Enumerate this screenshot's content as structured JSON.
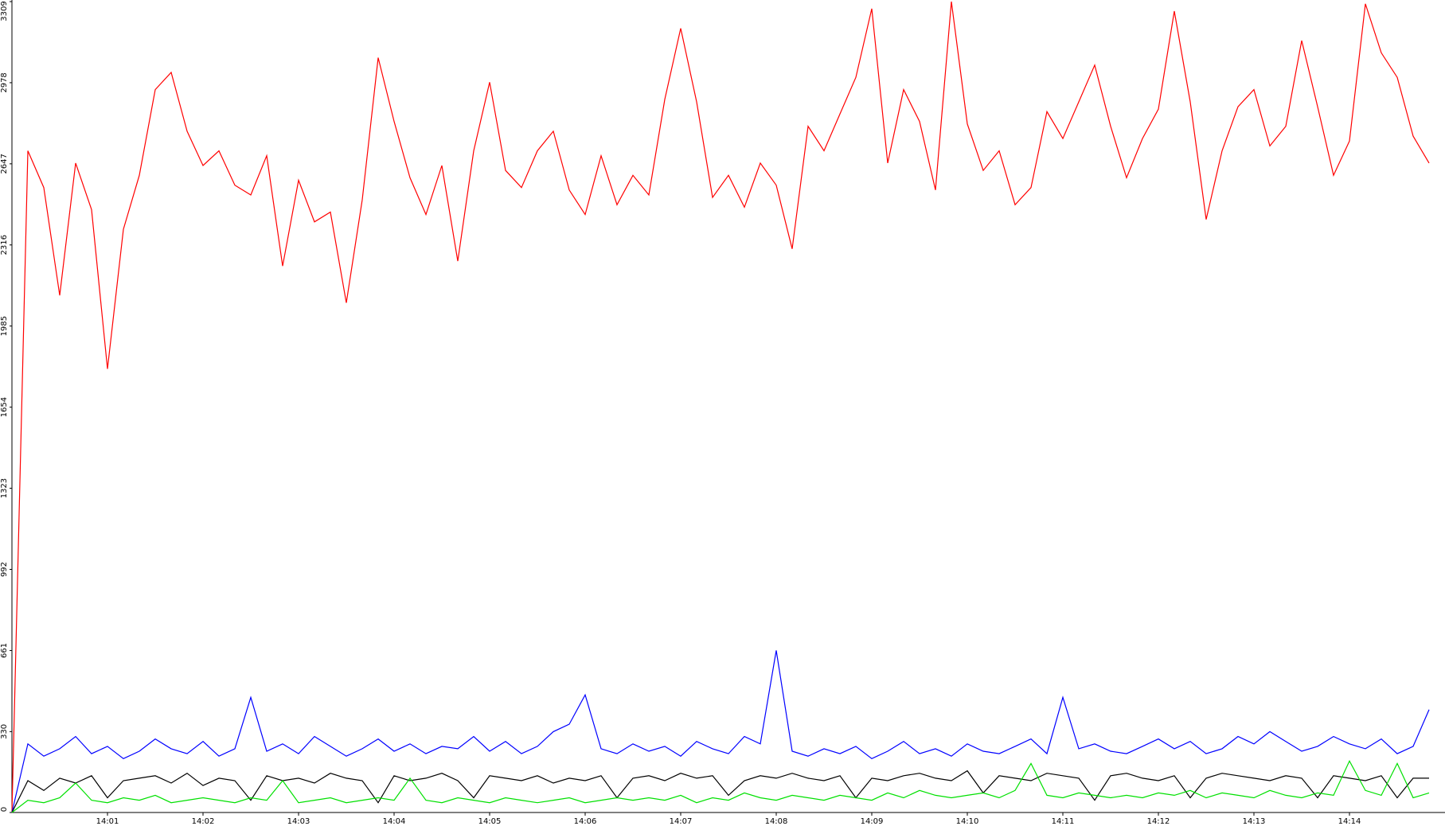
{
  "chart_data": {
    "type": "line",
    "categories": [
      null,
      null,
      null,
      null,
      null,
      null,
      "14:01",
      null,
      null,
      null,
      null,
      null,
      "14:02",
      null,
      null,
      null,
      null,
      null,
      "14:03",
      null,
      null,
      null,
      null,
      null,
      "14:04",
      null,
      null,
      null,
      null,
      null,
      "14:05",
      null,
      null,
      null,
      null,
      null,
      "14:06",
      null,
      null,
      null,
      null,
      null,
      "14:07",
      null,
      null,
      null,
      null,
      null,
      "14:08",
      null,
      null,
      null,
      null,
      null,
      "14:09",
      null,
      null,
      null,
      null,
      null,
      "14:10",
      null,
      null,
      null,
      null,
      null,
      "14:11",
      null,
      null,
      null,
      null,
      null,
      "14:12",
      null,
      null,
      null,
      null,
      null,
      "14:13",
      null,
      null,
      null,
      null,
      null,
      "14:14",
      null,
      null,
      null,
      null,
      null
    ],
    "series": [
      {
        "color": "#ff0000",
        "values": [
          0,
          2700,
          2550,
          2110,
          2650,
          2460,
          1810,
          2380,
          2600,
          2950,
          3020,
          2780,
          2640,
          2700,
          2560,
          2520,
          2680,
          2230,
          2580,
          2410,
          2450,
          2080,
          2500,
          3080,
          2820,
          2590,
          2440,
          2640,
          2250,
          2700,
          2980,
          2620,
          2550,
          2700,
          2780,
          2540,
          2440,
          2680,
          2480,
          2600,
          2520,
          2910,
          3200,
          2900,
          2510,
          2600,
          2470,
          2650,
          2560,
          2300,
          2800,
          2700,
          2850,
          3000,
          3280,
          2650,
          2950,
          2820,
          2540,
          3309,
          2810,
          2620,
          2700,
          2480,
          2550,
          2860,
          2750,
          2900,
          3050,
          2800,
          2590,
          2750,
          2870,
          3270,
          2900,
          2420,
          2700,
          2880,
          2950,
          2720,
          2800,
          3150,
          2880,
          2600,
          2740,
          3300,
          3100,
          3000,
          2760,
          2650
        ]
      },
      {
        "color": "#0000ff",
        "values": [
          0,
          280,
          230,
          260,
          310,
          240,
          270,
          220,
          250,
          300,
          260,
          240,
          290,
          230,
          260,
          470,
          250,
          280,
          240,
          310,
          270,
          230,
          260,
          300,
          250,
          280,
          240,
          270,
          260,
          310,
          250,
          290,
          240,
          270,
          330,
          360,
          480,
          260,
          240,
          280,
          250,
          270,
          230,
          290,
          260,
          240,
          310,
          280,
          661,
          250,
          230,
          260,
          240,
          270,
          220,
          250,
          290,
          240,
          260,
          230,
          280,
          250,
          240,
          270,
          300,
          240,
          470,
          260,
          280,
          250,
          240,
          270,
          300,
          260,
          290,
          240,
          260,
          310,
          280,
          330,
          290,
          250,
          270,
          310,
          280,
          260,
          300,
          240,
          270,
          420
        ]
      },
      {
        "color": "#000000",
        "values": [
          0,
          130,
          90,
          140,
          120,
          150,
          60,
          130,
          140,
          150,
          120,
          160,
          110,
          140,
          130,
          50,
          150,
          130,
          140,
          120,
          160,
          140,
          130,
          40,
          150,
          130,
          140,
          160,
          130,
          60,
          150,
          140,
          130,
          150,
          120,
          140,
          130,
          150,
          60,
          140,
          150,
          130,
          160,
          140,
          150,
          70,
          130,
          150,
          140,
          160,
          140,
          130,
          150,
          60,
          140,
          130,
          150,
          160,
          140,
          130,
          170,
          80,
          150,
          140,
          130,
          160,
          150,
          140,
          50,
          150,
          160,
          140,
          130,
          150,
          60,
          140,
          160,
          150,
          140,
          130,
          150,
          140,
          60,
          150,
          140,
          130,
          150,
          60,
          140,
          140
        ]
      },
      {
        "color": "#00e000",
        "values": [
          0,
          50,
          40,
          60,
          120,
          50,
          40,
          60,
          50,
          70,
          40,
          50,
          60,
          50,
          40,
          60,
          50,
          130,
          40,
          50,
          60,
          40,
          50,
          60,
          50,
          140,
          50,
          40,
          60,
          50,
          40,
          60,
          50,
          40,
          50,
          60,
          40,
          50,
          60,
          50,
          60,
          50,
          70,
          40,
          60,
          50,
          80,
          60,
          50,
          70,
          60,
          50,
          70,
          60,
          50,
          80,
          60,
          90,
          70,
          60,
          70,
          80,
          60,
          90,
          200,
          70,
          60,
          80,
          70,
          60,
          70,
          60,
          80,
          70,
          90,
          60,
          80,
          70,
          60,
          90,
          70,
          60,
          80,
          70,
          210,
          90,
          70,
          200,
          60,
          80
        ]
      }
    ],
    "ylim": [
      0,
      3309
    ],
    "yticks": [
      0,
      330,
      661,
      992,
      1323,
      1654,
      1985,
      2316,
      2647,
      2978,
      3309
    ]
  }
}
